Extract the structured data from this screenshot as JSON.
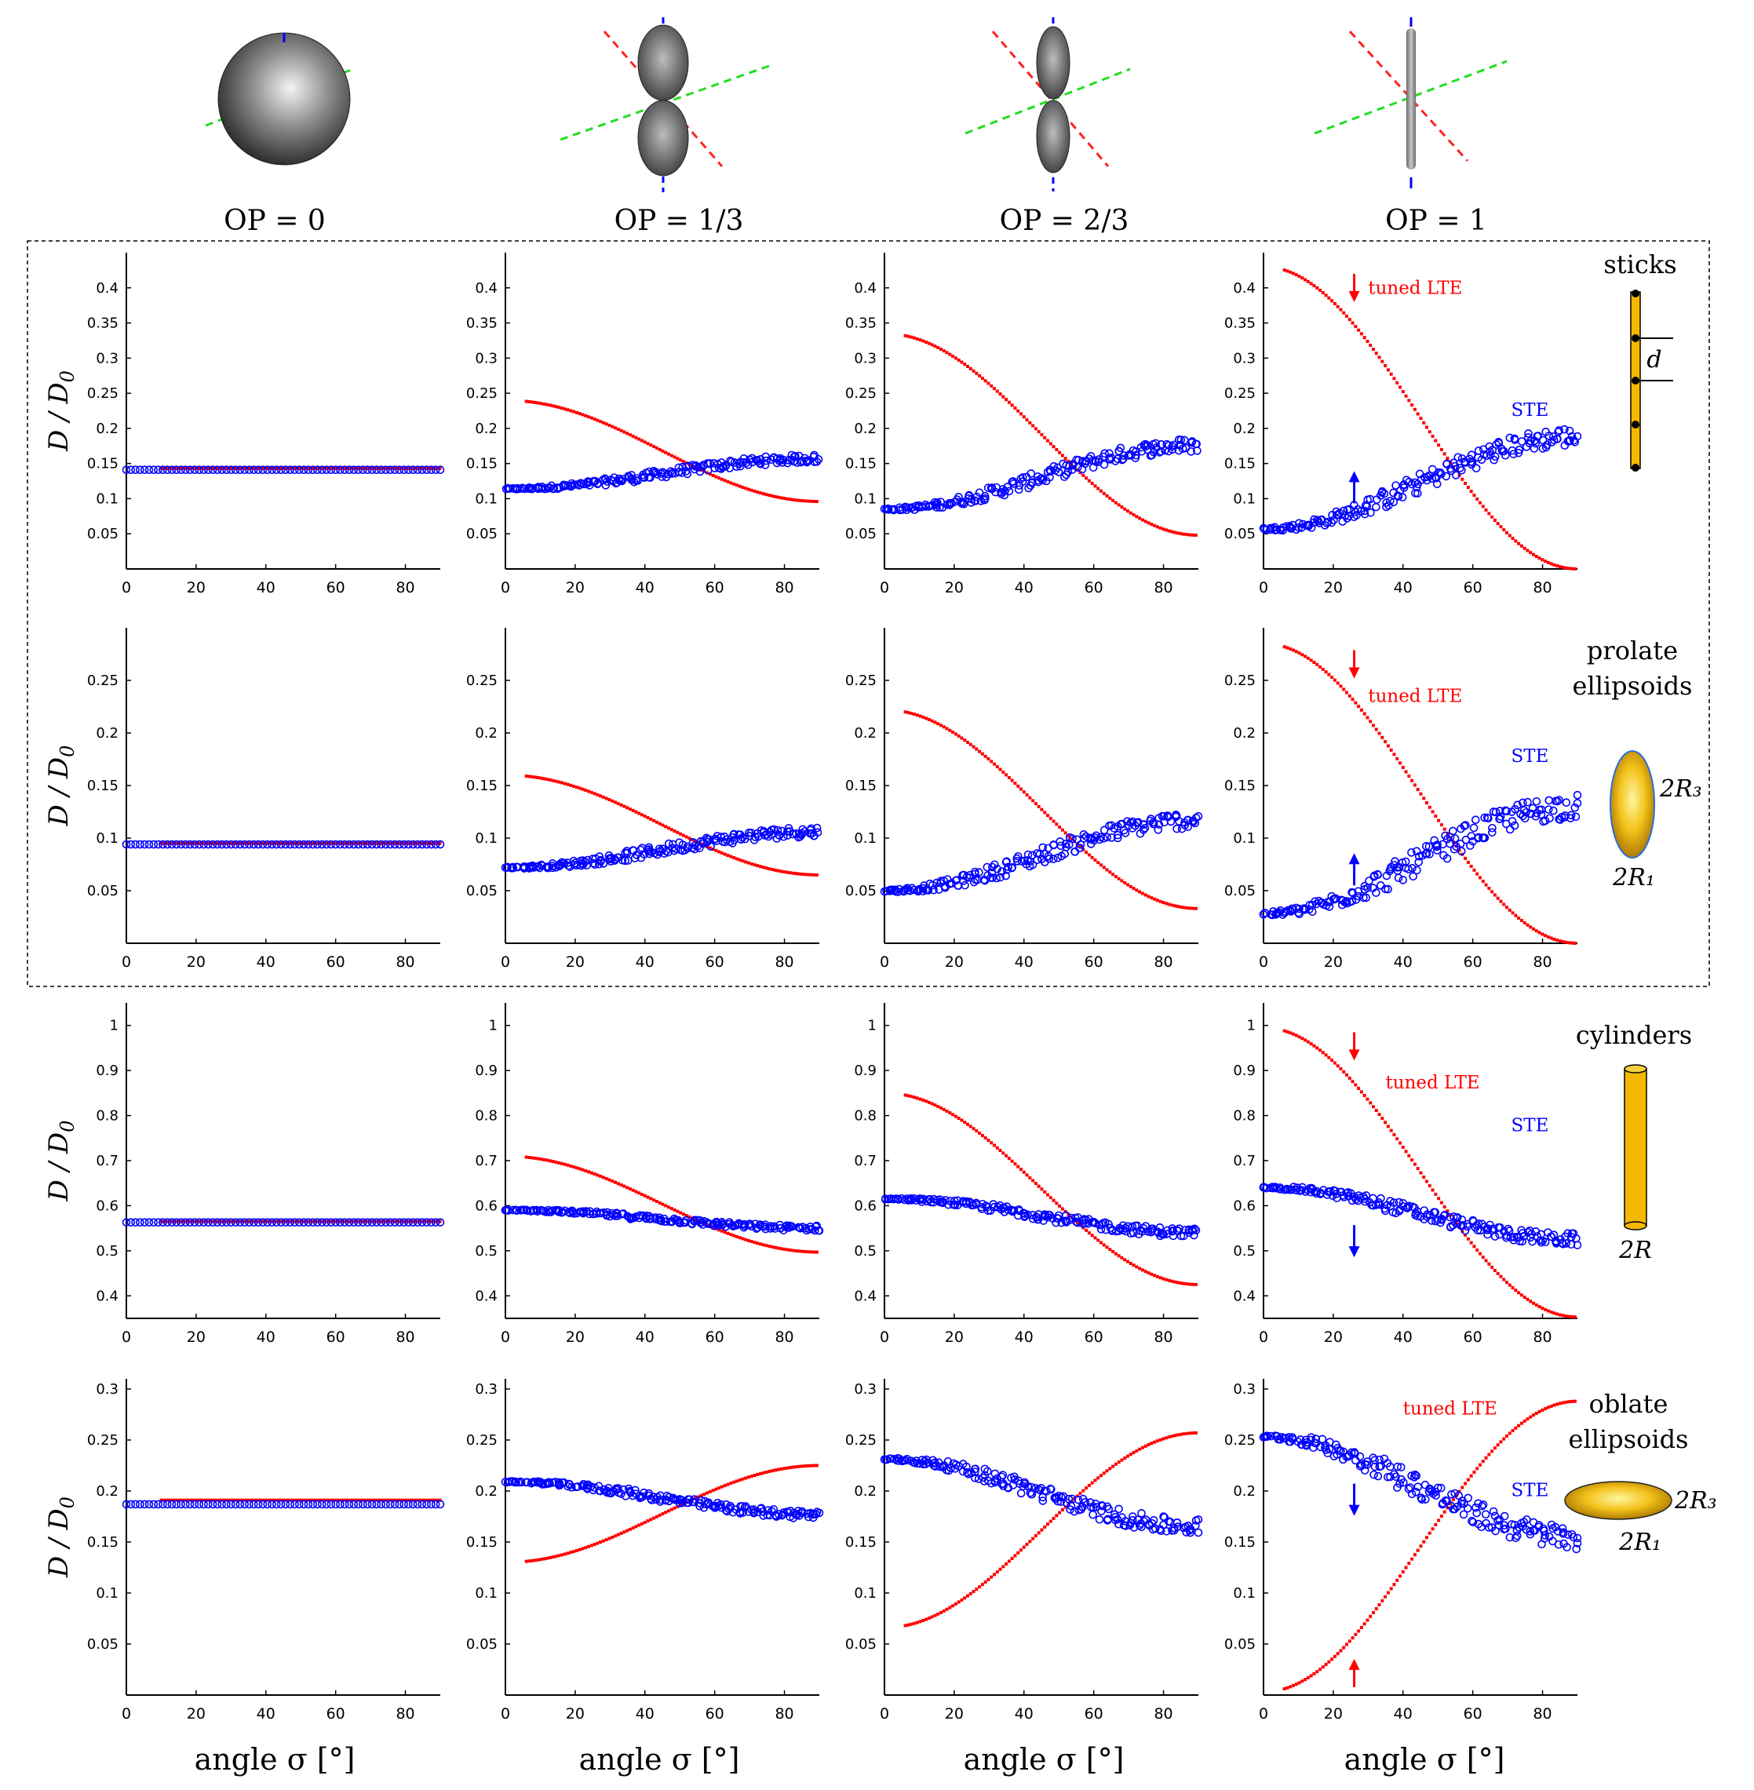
{
  "op_labels": [
    "OP = 0",
    "OP = 1/3",
    "OP = 2/3",
    "OP = 1"
  ],
  "ylabel": "D / D",
  "ylabel_sub": "0",
  "xlabel": "angle σ [°]",
  "annotations": {
    "lte": "tuned LTE",
    "ste": "STE"
  },
  "colors": {
    "lte": "#ff0000",
    "ste": "#0000ff",
    "axis": "#000000",
    "gold": "#f5b800"
  },
  "chart_data": {
    "type": "scatter",
    "x_range": [
      0,
      90
    ],
    "x_ticks": [
      0,
      20,
      40,
      60,
      80
    ],
    "columns": [
      "OP = 0",
      "OP = 1/3",
      "OP = 2/3",
      "OP = 1"
    ],
    "rows": [
      {
        "name": "sticks",
        "label_lines": [
          "sticks"
        ],
        "y_range": [
          0,
          0.45
        ],
        "y_ticks": [
          0.05,
          0.1,
          0.15,
          0.2,
          0.25,
          0.3,
          0.35,
          0.4
        ],
        "y_tick_labels": [
          "0.05",
          "0.1",
          "0.15",
          "0.2",
          "0.25",
          "0.3",
          "0.35",
          "0.4"
        ],
        "shape_labels": [
          "d"
        ],
        "panels": [
          {
            "lte": [
              0.143,
              0.143
            ],
            "ste": [
              0.141,
              0.141
            ],
            "spread": 0
          },
          {
            "lte": [
              0.24,
              0.096
            ],
            "ste": [
              0.114,
              0.157
            ],
            "spread": 0.006
          },
          {
            "lte": [
              0.335,
              0.048
            ],
            "ste": [
              0.085,
              0.176
            ],
            "spread": 0.01
          },
          {
            "lte": [
              0.43,
              0.0
            ],
            "ste": [
              0.057,
              0.188
            ],
            "spread": 0.014
          }
        ]
      },
      {
        "name": "prolate ellipsoids",
        "label_lines": [
          "prolate",
          "ellipsoids"
        ],
        "y_range": [
          0,
          0.3
        ],
        "y_ticks": [
          0.05,
          0.1,
          0.15,
          0.2,
          0.25
        ],
        "y_tick_labels": [
          "0.05",
          "0.1",
          "0.15",
          "0.2",
          "0.25"
        ],
        "shape_labels": [
          "2R₃",
          "2R₁"
        ],
        "panels": [
          {
            "lte": [
              0.095,
              0.095
            ],
            "ste": [
              0.094,
              0.094
            ],
            "spread": 0
          },
          {
            "lte": [
              0.16,
              0.065
            ],
            "ste": [
              0.072,
              0.106
            ],
            "spread": 0.005
          },
          {
            "lte": [
              0.222,
              0.033
            ],
            "ste": [
              0.05,
              0.117
            ],
            "spread": 0.008
          },
          {
            "lte": [
              0.285,
              0.0
            ],
            "ste": [
              0.028,
              0.13
            ],
            "spread": 0.012
          }
        ]
      },
      {
        "name": "cylinders",
        "label_lines": [
          "cylinders"
        ],
        "y_range": [
          0.35,
          1.05
        ],
        "y_ticks": [
          0.4,
          0.5,
          0.6,
          0.7,
          0.8,
          0.9,
          1.0
        ],
        "y_tick_labels": [
          "0.4",
          "0.5",
          "0.6",
          "0.7",
          "0.8",
          "0.9",
          "1"
        ],
        "shape_labels": [
          "2R"
        ],
        "panels": [
          {
            "lte": [
              0.565,
              0.565
            ],
            "ste": [
              0.563,
              0.563
            ],
            "spread": 0
          },
          {
            "lte": [
              0.71,
              0.497
            ],
            "ste": [
              0.59,
              0.55
            ],
            "spread": 0.006
          },
          {
            "lte": [
              0.85,
              0.425
            ],
            "ste": [
              0.615,
              0.54
            ],
            "spread": 0.01
          },
          {
            "lte": [
              0.995,
              0.353
            ],
            "ste": [
              0.64,
              0.525
            ],
            "spread": 0.014
          }
        ]
      },
      {
        "name": "oblate ellipsoids",
        "label_lines": [
          "oblate",
          "ellipsoids"
        ],
        "y_range": [
          0,
          0.31
        ],
        "y_ticks": [
          0.05,
          0.1,
          0.15,
          0.2,
          0.25,
          0.3
        ],
        "y_tick_labels": [
          "0.05",
          "0.1",
          "0.15",
          "0.2",
          "0.25",
          "0.3"
        ],
        "shape_labels": [
          "2R₃",
          "2R₁"
        ],
        "panels": [
          {
            "lte": [
              0.191,
              0.191
            ],
            "ste": [
              0.187,
              0.187
            ],
            "spread": 0
          },
          {
            "lte": [
              0.13,
              0.225
            ],
            "ste": [
              0.209,
              0.177
            ],
            "spread": 0.004
          },
          {
            "lte": [
              0.066,
              0.257
            ],
            "ste": [
              0.231,
              0.165
            ],
            "spread": 0.008
          },
          {
            "lte": [
              0.003,
              0.288
            ],
            "ste": [
              0.253,
              0.155
            ],
            "spread": 0.012
          }
        ]
      }
    ]
  }
}
